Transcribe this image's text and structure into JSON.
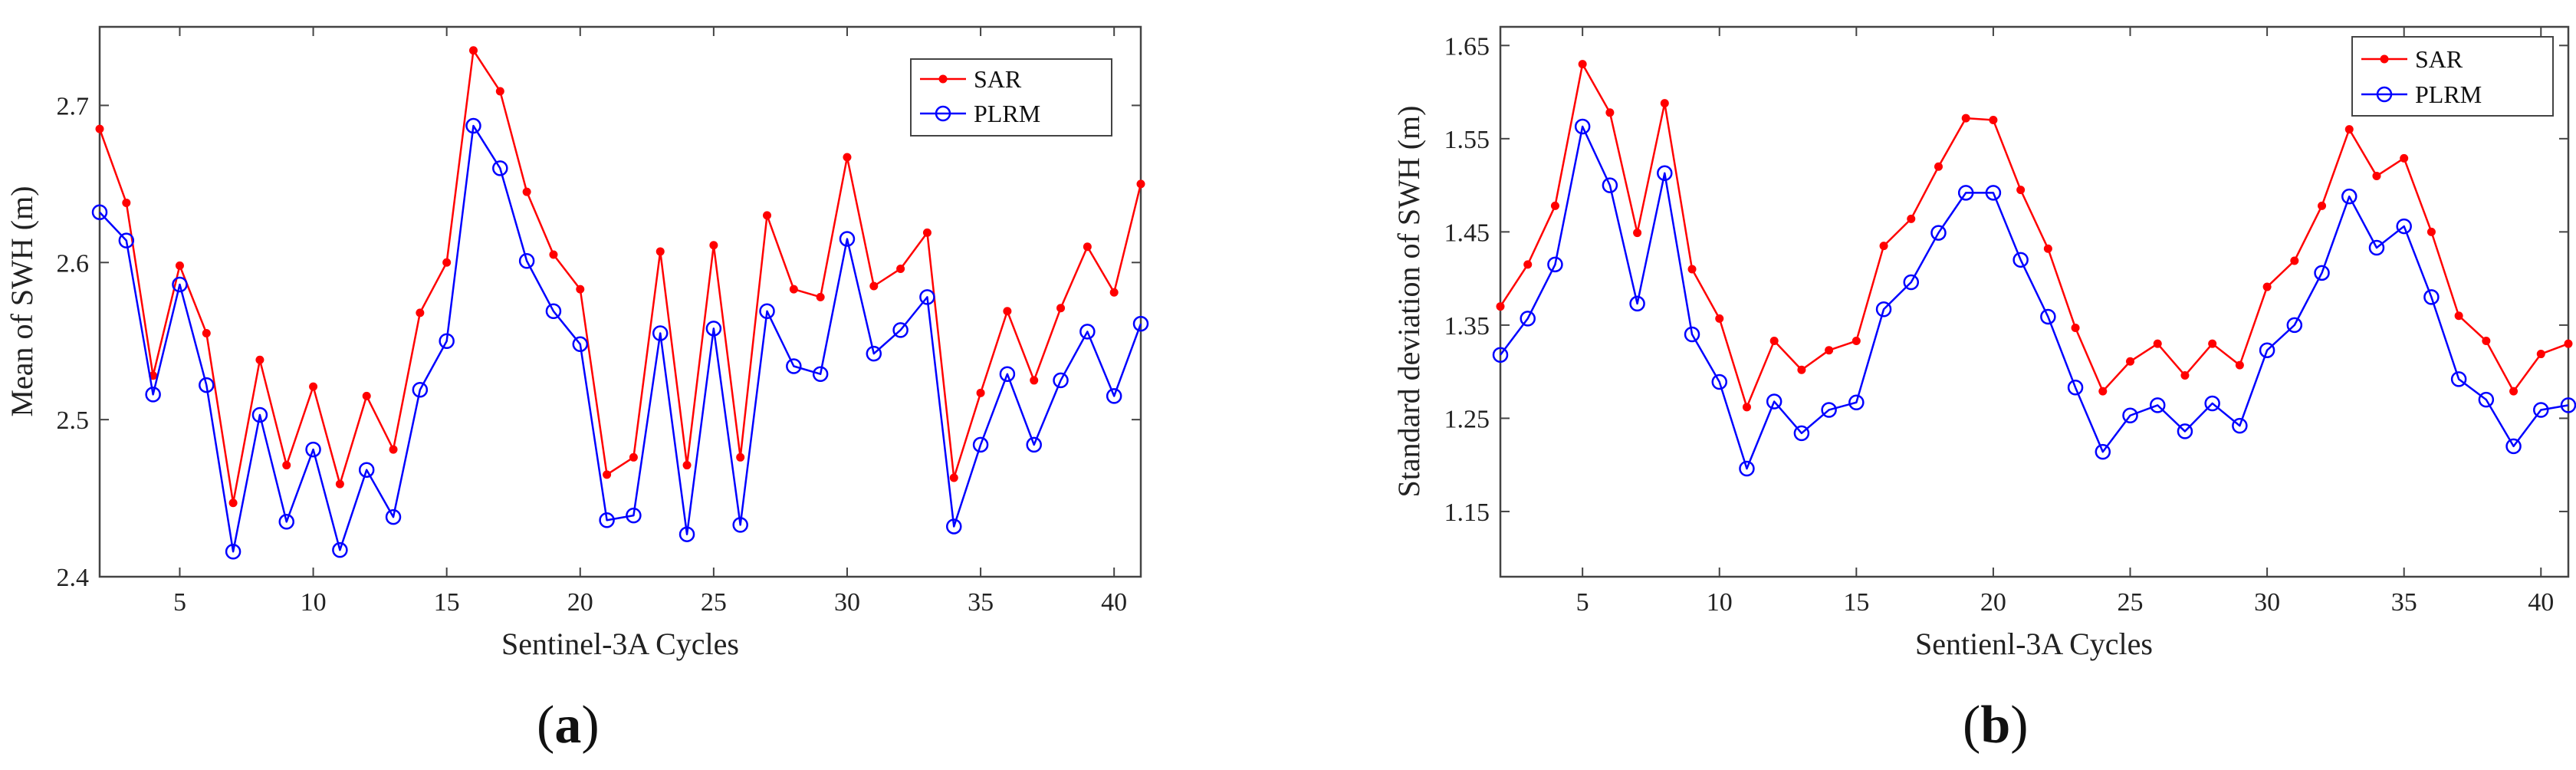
{
  "colors": {
    "sar": "#ff0000",
    "plrm": "#0000ff",
    "axis": "#444444"
  },
  "panels": [
    {
      "label_open": "(",
      "label_letter": "a",
      "label_close": ")"
    },
    {
      "label_open": "(",
      "label_letter": "b",
      "label_close": ")"
    }
  ],
  "chart_data": [
    {
      "type": "line",
      "title": "",
      "xlabel": "Sentinel-3A Cycles",
      "ylabel": "Mean of SWH (m)",
      "xlim": [
        2,
        41
      ],
      "ylim": [
        2.4,
        2.75
      ],
      "xticks": [
        5,
        10,
        15,
        20,
        25,
        30,
        35,
        40
      ],
      "yticks": [
        2.4,
        2.5,
        2.6,
        2.7
      ],
      "ytick_labels": [
        "2.4",
        "2.5",
        "2.6",
        "2.7"
      ],
      "legend_position": "top-right",
      "x": [
        2,
        3,
        4,
        5,
        6,
        7,
        8,
        9,
        10,
        11,
        12,
        13,
        14,
        15,
        16,
        17,
        18,
        19,
        20,
        21,
        22,
        23,
        24,
        25,
        26,
        27,
        28,
        29,
        30,
        31,
        32,
        33,
        34,
        35,
        36,
        37,
        38,
        39,
        40,
        41
      ],
      "series": [
        {
          "name": "SAR",
          "marker": "dot",
          "values": [
            2.685,
            2.638,
            2.528,
            2.598,
            2.555,
            2.447,
            2.538,
            2.471,
            2.521,
            2.459,
            2.515,
            2.481,
            2.568,
            2.6,
            2.735,
            2.709,
            2.645,
            2.605,
            2.583,
            2.465,
            2.476,
            2.607,
            2.471,
            2.611,
            2.476,
            2.63,
            2.583,
            2.578,
            2.667,
            2.585,
            2.596,
            2.619,
            2.463,
            2.517,
            2.569,
            2.525,
            2.571,
            2.61,
            2.581,
            2.65
          ]
        },
        {
          "name": "PLRM",
          "marker": "circle",
          "values": [
            2.632,
            2.614,
            2.516,
            2.586,
            2.522,
            2.416,
            2.503,
            2.435,
            2.481,
            2.417,
            2.468,
            2.438,
            2.519,
            2.55,
            2.687,
            2.66,
            2.601,
            2.569,
            2.548,
            2.436,
            2.439,
            2.555,
            2.427,
            2.558,
            2.433,
            2.569,
            2.534,
            2.529,
            2.615,
            2.542,
            2.557,
            2.578,
            2.432,
            2.484,
            2.529,
            2.484,
            2.525,
            2.556,
            2.515,
            2.561
          ]
        }
      ]
    },
    {
      "type": "line",
      "title": "",
      "xlabel": "Sentienl-3A Cycles",
      "ylabel": "Standard deviation of SWH (m)",
      "xlim": [
        2,
        41
      ],
      "ylim": [
        1.08,
        1.67
      ],
      "xticks": [
        5,
        10,
        15,
        20,
        25,
        30,
        35,
        40
      ],
      "yticks": [
        1.15,
        1.25,
        1.35,
        1.45,
        1.55,
        1.65
      ],
      "ytick_labels": [
        "1.15",
        "1.25",
        "1.35",
        "1.45",
        "1.55",
        "1.65"
      ],
      "legend_position": "top-right",
      "x": [
        2,
        3,
        4,
        5,
        6,
        7,
        8,
        9,
        10,
        11,
        12,
        13,
        14,
        15,
        16,
        17,
        18,
        19,
        20,
        21,
        22,
        23,
        24,
        25,
        26,
        27,
        28,
        29,
        30,
        31,
        32,
        33,
        34,
        35,
        36,
        37,
        38,
        39,
        40,
        41
      ],
      "series": [
        {
          "name": "SAR",
          "marker": "dot",
          "values": [
            1.37,
            1.415,
            1.478,
            1.63,
            1.578,
            1.449,
            1.588,
            1.41,
            1.357,
            1.262,
            1.333,
            1.302,
            1.323,
            1.333,
            1.435,
            1.464,
            1.52,
            1.572,
            1.57,
            1.495,
            1.432,
            1.347,
            1.279,
            1.311,
            1.33,
            1.296,
            1.33,
            1.307,
            1.391,
            1.419,
            1.478,
            1.56,
            1.51,
            1.529,
            1.45,
            1.36,
            1.333,
            1.279,
            1.319,
            1.33
          ]
        },
        {
          "name": "PLRM",
          "marker": "circle",
          "values": [
            1.318,
            1.357,
            1.415,
            1.563,
            1.5,
            1.373,
            1.513,
            1.34,
            1.289,
            1.196,
            1.268,
            1.234,
            1.259,
            1.267,
            1.367,
            1.396,
            1.449,
            1.492,
            1.492,
            1.42,
            1.359,
            1.283,
            1.214,
            1.253,
            1.264,
            1.236,
            1.266,
            1.242,
            1.323,
            1.35,
            1.406,
            1.488,
            1.433,
            1.456,
            1.38,
            1.292,
            1.27,
            1.22,
            1.259,
            1.264
          ]
        }
      ]
    }
  ]
}
